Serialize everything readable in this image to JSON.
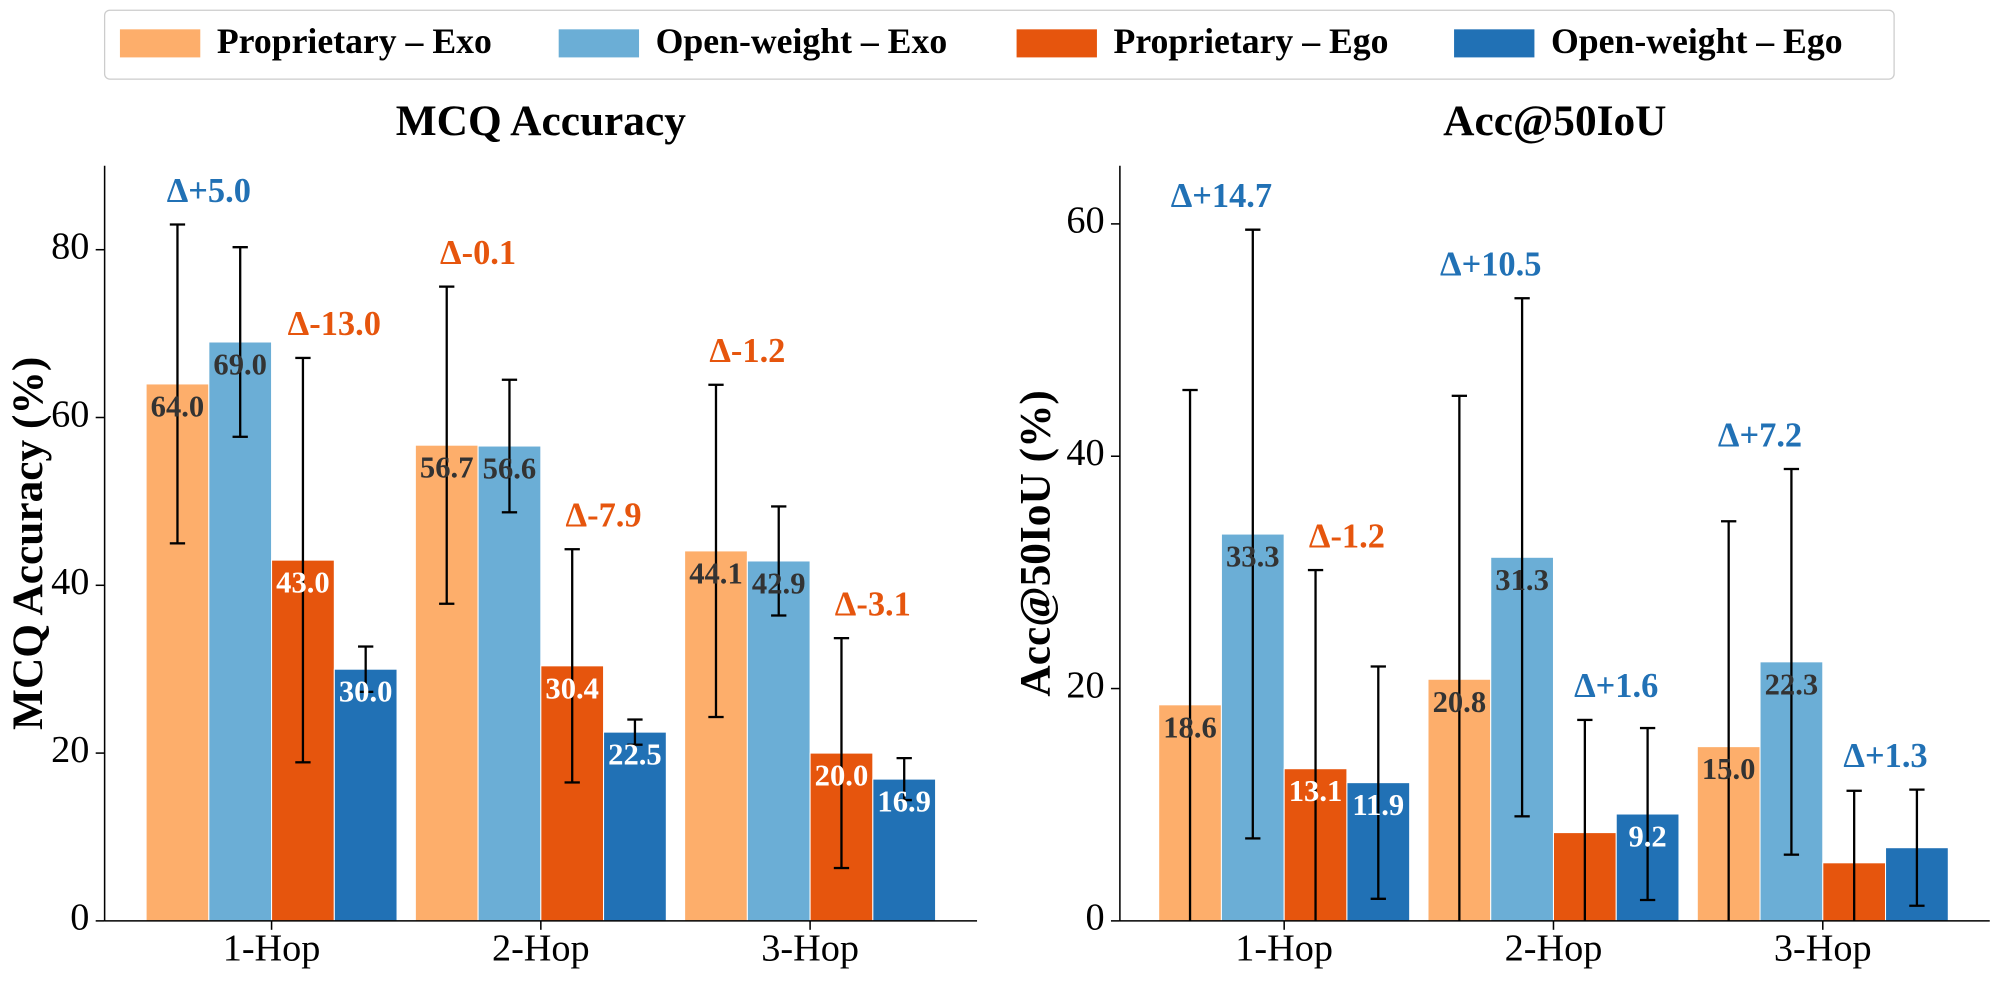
{
  "chart_data": [
    {
      "type": "bar",
      "title": "MCQ Accuracy",
      "ylabel": "MCQ Accuracy (%)",
      "categories": [
        "1-Hop",
        "2-Hop",
        "3-Hop"
      ],
      "ylim": [
        0,
        90
      ],
      "yticks": [
        0,
        20,
        40,
        60,
        80
      ],
      "series": [
        {
          "name": "Proprietary – Exo",
          "color": "#fdae6b",
          "label_color": "#333333",
          "values": [
            64.0,
            56.7,
            44.1
          ],
          "errors": [
            19.0,
            18.9,
            19.8
          ],
          "value_labels": [
            "64.0",
            "56.7",
            "44.1"
          ]
        },
        {
          "name": "Open-weight – Exo",
          "color": "#6baed6",
          "label_color": "#333333",
          "values": [
            69.0,
            56.6,
            42.9
          ],
          "errors": [
            11.3,
            7.9,
            6.5
          ],
          "value_labels": [
            "69.0",
            "56.6",
            "42.9"
          ]
        },
        {
          "name": "Proprietary – Ego",
          "color": "#e6550d",
          "label_color": "#ffffff",
          "values": [
            43.0,
            30.4,
            20.0
          ],
          "errors": [
            24.1,
            13.9,
            13.7
          ],
          "value_labels": [
            "43.0",
            "30.4",
            "20.0"
          ]
        },
        {
          "name": "Open-weight – Ego",
          "color": "#2171b5",
          "label_color": "#ffffff",
          "values": [
            30.0,
            22.5,
            16.9
          ],
          "errors": [
            2.7,
            1.5,
            2.5
          ],
          "value_labels": [
            "30.0",
            "22.5",
            "16.9"
          ]
        }
      ],
      "annotations": [
        {
          "text": "Δ+5.0",
          "color": "#2171b5"
        },
        {
          "text": "Δ-13.0",
          "color": "#e6550d"
        },
        {
          "text": "Δ-0.1",
          "color": "#e6550d"
        },
        {
          "text": "Δ-7.9",
          "color": "#e6550d"
        },
        {
          "text": "Δ-1.2",
          "color": "#e6550d"
        },
        {
          "text": "Δ-3.1",
          "color": "#e6550d"
        }
      ]
    },
    {
      "type": "bar",
      "title": "Acc@50IoU",
      "ylabel": "Acc@50IoU (%)",
      "categories": [
        "1-Hop",
        "2-Hop",
        "3-Hop"
      ],
      "ylim": [
        0,
        65
      ],
      "yticks": [
        0,
        20,
        40,
        60
      ],
      "series": [
        {
          "color": "#fdae6b",
          "label_color": "#333333",
          "values": [
            18.6,
            20.8,
            15.0
          ],
          "errors": [
            27.1,
            24.4,
            19.4
          ],
          "value_labels": [
            "18.6",
            "20.8",
            "15.0"
          ]
        },
        {
          "color": "#6baed6",
          "label_color": "#333333",
          "values": [
            33.3,
            31.3,
            22.3
          ],
          "errors": [
            26.2,
            22.3,
            16.6
          ],
          "value_labels": [
            "33.3",
            "31.3",
            "22.3"
          ]
        },
        {
          "color": "#e6550d",
          "label_color": "#ffffff",
          "values": [
            13.1,
            7.6,
            5.0
          ],
          "errors": [
            17.1,
            9.7,
            6.2
          ],
          "value_labels": [
            "13.1",
            null,
            null
          ]
        },
        {
          "color": "#2171b5",
          "label_color": "#ffffff",
          "values": [
            11.9,
            9.2,
            6.3
          ],
          "errors": [
            10.0,
            7.4,
            5.0
          ],
          "value_labels": [
            "11.9",
            "9.2",
            null
          ]
        }
      ],
      "annotations": [
        {
          "text": "Δ+14.7",
          "color": "#2171b5"
        },
        {
          "text": "Δ-1.2",
          "color": "#e6550d"
        },
        {
          "text": "Δ+10.5",
          "color": "#2171b5"
        },
        {
          "text": "Δ+1.6",
          "color": "#2171b5"
        },
        {
          "text": "Δ+7.2",
          "color": "#2171b5"
        },
        {
          "text": "Δ+1.3",
          "color": "#2171b5"
        }
      ]
    }
  ]
}
